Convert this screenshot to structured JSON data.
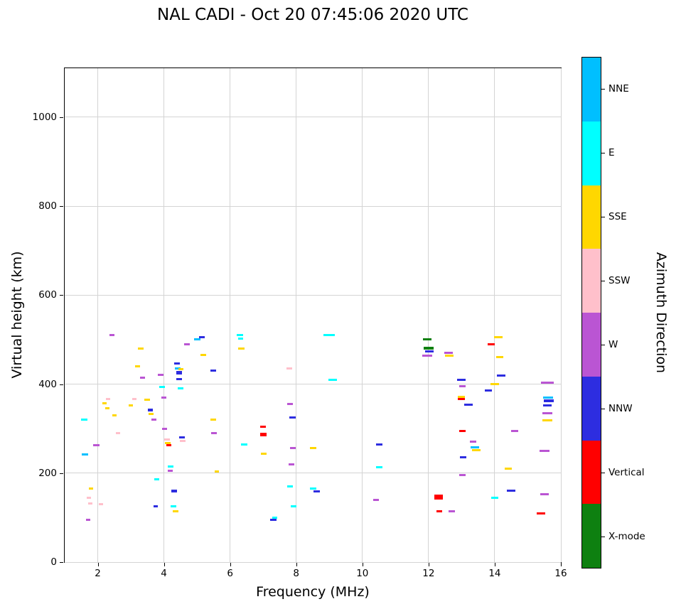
{
  "title": "NAL CADI - Oct 20 07:45:06 2020 UTC",
  "xlabel": "Frequency (MHz)",
  "ylabel": "Virtual height (km)",
  "colorbar": {
    "title": "Azimuth Direction",
    "labels": [
      "NNE",
      "E",
      "SSE",
      "SSW",
      "W",
      "NNW",
      "Vertical",
      "X-mode"
    ]
  },
  "chart_data": {
    "type": "scatter",
    "title": "NAL CADI - Oct 20 07:45:06 2020 UTC",
    "xlabel": "Frequency (MHz)",
    "ylabel": "Virtual height (km)",
    "xlim": [
      1,
      16
    ],
    "ylim": [
      0,
      1110
    ],
    "x_ticks": [
      2,
      4,
      6,
      8,
      10,
      12,
      14,
      16
    ],
    "y_ticks": [
      0,
      200,
      400,
      600,
      800,
      1000
    ],
    "grid": true,
    "marker": "horizontal-dash",
    "legend_position": "right-colorbar",
    "direction_colors": {
      "NNE": "#00BFFF",
      "E": "#00FFFF",
      "SSE": "#FFD700",
      "SSW": "#FFC0CB",
      "W": "#BA55D3",
      "NNW": "#2D2DE0",
      "Vertical": "#FF0000",
      "X-mode": "#0E8010"
    },
    "points": [
      [
        1.6,
        320,
        "E"
      ],
      [
        1.62,
        242,
        "NNE"
      ],
      [
        1.7,
        95,
        "W",
        6
      ],
      [
        1.72,
        145,
        "SSW",
        6
      ],
      [
        1.78,
        132,
        "SSW",
        6
      ],
      [
        1.8,
        165,
        "SSE",
        6
      ],
      [
        1.95,
        262,
        "W"
      ],
      [
        2.1,
        130,
        "SSW",
        6
      ],
      [
        2.2,
        357,
        "SSE",
        6
      ],
      [
        2.28,
        345,
        "SSE",
        6
      ],
      [
        2.32,
        367,
        "SSW",
        6
      ],
      [
        2.42,
        510,
        "W",
        7
      ],
      [
        2.5,
        330,
        "SSE",
        6
      ],
      [
        2.62,
        290,
        "SSW",
        6
      ],
      [
        3.0,
        352,
        "SSE",
        6
      ],
      [
        3.1,
        366,
        "SSW",
        6
      ],
      [
        3.2,
        440,
        "SSE",
        7
      ],
      [
        3.3,
        480,
        "SSE",
        8
      ],
      [
        3.35,
        415,
        "W",
        7
      ],
      [
        3.5,
        365,
        "SSE",
        8
      ],
      [
        3.58,
        341,
        "NNW",
        7,
        4
      ],
      [
        3.62,
        333,
        "SSE",
        7
      ],
      [
        3.7,
        320,
        "W",
        7
      ],
      [
        3.78,
        186,
        "E",
        7
      ],
      [
        3.75,
        125,
        "NNW",
        6
      ],
      [
        3.9,
        421,
        "W",
        8
      ],
      [
        3.95,
        394,
        "E",
        8
      ],
      [
        4.0,
        370,
        "W",
        7
      ],
      [
        4.02,
        300,
        "W",
        7
      ],
      [
        4.1,
        275,
        "SSW",
        8
      ],
      [
        4.12,
        268,
        "SSE",
        8
      ],
      [
        4.15,
        262,
        "Vertical",
        7
      ],
      [
        4.2,
        215,
        "E",
        8
      ],
      [
        4.2,
        205,
        "W",
        7
      ],
      [
        4.3,
        160,
        "NNW",
        8,
        4
      ],
      [
        4.28,
        125,
        "E",
        8
      ],
      [
        4.35,
        114,
        "SSE",
        8
      ],
      [
        4.4,
        446,
        "NNW",
        8
      ],
      [
        4.42,
        436,
        "NNE",
        8
      ],
      [
        4.45,
        425,
        "NNW",
        8,
        5
      ],
      [
        4.45,
        412,
        "NNW",
        8
      ],
      [
        4.52,
        434,
        "SSE",
        7
      ],
      [
        4.5,
        390,
        "E",
        8
      ],
      [
        4.55,
        281,
        "NNW",
        8
      ],
      [
        4.57,
        273,
        "SSW",
        8
      ],
      [
        4.7,
        490,
        "W",
        8
      ],
      [
        5.0,
        500,
        "NNE",
        9
      ],
      [
        5.15,
        505,
        "NNW",
        8
      ],
      [
        5.2,
        465,
        "SSE",
        8
      ],
      [
        5.5,
        430,
        "NNW",
        8
      ],
      [
        5.5,
        320,
        "SSE",
        8
      ],
      [
        5.52,
        290,
        "W",
        8
      ],
      [
        5.6,
        204,
        "SSE",
        6
      ],
      [
        6.3,
        510,
        "E",
        9
      ],
      [
        6.32,
        502,
        "E",
        7
      ],
      [
        6.35,
        480,
        "SSE",
        9
      ],
      [
        6.42,
        264,
        "E",
        9
      ],
      [
        7.0,
        305,
        "Vertical",
        8
      ],
      [
        7.0,
        287,
        "Vertical",
        9,
        5
      ],
      [
        7.02,
        244,
        "SSE",
        8
      ],
      [
        7.3,
        95,
        "NNW",
        9
      ],
      [
        7.36,
        100,
        "E",
        7
      ],
      [
        7.8,
        435,
        "SSW",
        8
      ],
      [
        7.82,
        355,
        "W",
        8
      ],
      [
        7.88,
        325,
        "NNW",
        9
      ],
      [
        7.9,
        256,
        "W",
        8
      ],
      [
        7.85,
        220,
        "W",
        8
      ],
      [
        7.82,
        170,
        "E",
        8
      ],
      [
        7.92,
        125,
        "E",
        8
      ],
      [
        8.5,
        256,
        "SSE",
        9
      ],
      [
        8.52,
        165,
        "E",
        9
      ],
      [
        8.62,
        159,
        "NNW",
        9
      ],
      [
        9.0,
        510,
        "E",
        16
      ],
      [
        9.1,
        410,
        "E",
        12
      ],
      [
        10.5,
        264,
        "NNW",
        9
      ],
      [
        10.52,
        214,
        "E",
        9
      ],
      [
        10.42,
        140,
        "W",
        8
      ],
      [
        11.95,
        500,
        "X-mode",
        12
      ],
      [
        12.0,
        480,
        "X-mode",
        14,
        4
      ],
      [
        12.02,
        474,
        "NNW",
        12
      ],
      [
        11.97,
        464,
        "W",
        14
      ],
      [
        12.3,
        146,
        "Vertical",
        12,
        7
      ],
      [
        12.32,
        114,
        "Vertical",
        8
      ],
      [
        12.6,
        470,
        "W",
        12
      ],
      [
        12.62,
        464,
        "SSE",
        12
      ],
      [
        12.7,
        114,
        "W",
        9
      ],
      [
        13.0,
        410,
        "NNW",
        12
      ],
      [
        13.02,
        396,
        "W",
        9
      ],
      [
        13.0,
        371,
        "SSE",
        10
      ],
      [
        13.0,
        366,
        "Vertical",
        10
      ],
      [
        13.02,
        295,
        "Vertical",
        9
      ],
      [
        13.05,
        236,
        "NNW",
        9
      ],
      [
        13.02,
        196,
        "W",
        9
      ],
      [
        13.2,
        354,
        "NNW",
        12
      ],
      [
        13.35,
        270,
        "W",
        9
      ],
      [
        13.4,
        258,
        "NNE",
        12
      ],
      [
        13.45,
        252,
        "SSE",
        12
      ],
      [
        13.8,
        385,
        "NNW",
        10
      ],
      [
        13.9,
        490,
        "Vertical",
        10
      ],
      [
        14.0,
        400,
        "SSE",
        12
      ],
      [
        14.1,
        505,
        "SSE",
        12
      ],
      [
        14.15,
        460,
        "SSE",
        10
      ],
      [
        14.2,
        420,
        "NNW",
        12
      ],
      [
        14.0,
        145,
        "E",
        10
      ],
      [
        14.5,
        160,
        "NNW",
        12
      ],
      [
        14.42,
        210,
        "SSE",
        10
      ],
      [
        14.6,
        295,
        "W",
        10
      ],
      [
        15.4,
        110,
        "Vertical",
        12
      ],
      [
        15.5,
        250,
        "W",
        14
      ],
      [
        15.6,
        403,
        "W",
        18
      ],
      [
        15.62,
        370,
        "NNE",
        14
      ],
      [
        15.63,
        363,
        "NNW",
        14,
        4
      ],
      [
        15.6,
        352,
        "NNW",
        12
      ],
      [
        15.6,
        335,
        "W",
        14
      ],
      [
        15.6,
        318,
        "SSE",
        14
      ],
      [
        15.5,
        152,
        "W",
        12
      ]
    ]
  }
}
